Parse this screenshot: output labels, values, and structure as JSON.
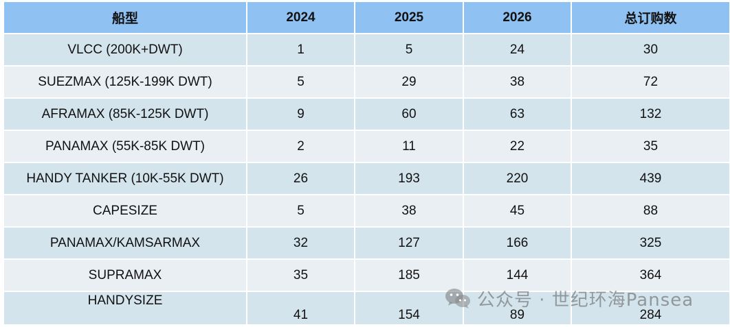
{
  "table": {
    "headers": [
      "船型",
      "2024",
      "2025",
      "2026",
      "总订购数"
    ],
    "rows": [
      {
        "name": "VLCC (200K+DWT)",
        "y2024": "1",
        "y2025": "5",
        "y2026": "24",
        "total": "30"
      },
      {
        "name": "SUEZMAX (125K-199K DWT)",
        "y2024": "5",
        "y2025": "29",
        "y2026": "38",
        "total": "72"
      },
      {
        "name": "AFRAMAX (85K-125K DWT)",
        "y2024": "9",
        "y2025": "60",
        "y2026": "63",
        "total": "132"
      },
      {
        "name": "PANAMAX (55K-85K DWT)",
        "y2024": "2",
        "y2025": "11",
        "y2026": "22",
        "total": "35"
      },
      {
        "name": "HANDY TANKER (10K-55K DWT)",
        "y2024": "26",
        "y2025": "193",
        "y2026": "220",
        "total": "439"
      },
      {
        "name": "CAPESIZE",
        "y2024": "5",
        "y2025": "38",
        "y2026": "45",
        "total": "88"
      },
      {
        "name": "PANAMAX/KAMSARMAX",
        "y2024": "32",
        "y2025": "127",
        "y2026": "166",
        "total": "325"
      },
      {
        "name": "SUPRAMAX",
        "y2024": "35",
        "y2025": "185",
        "y2026": "144",
        "total": "364"
      },
      {
        "name": "HANDYSIZE",
        "y2024": "41",
        "y2025": "154",
        "y2026": "89",
        "total": "284"
      }
    ]
  },
  "watermark": {
    "icon": "wechat-icon",
    "text": "公众号 · 世纪环海Pansea"
  }
}
